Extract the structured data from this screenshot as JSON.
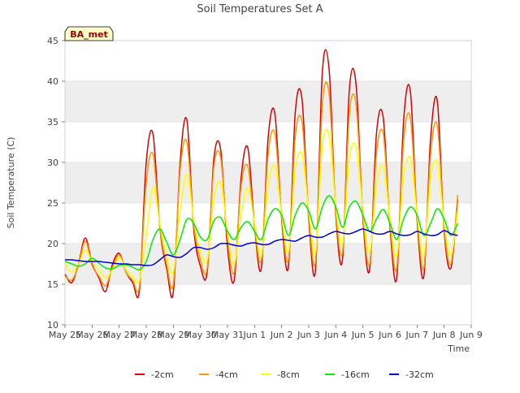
{
  "chart_data": {
    "type": "line",
    "title": "Soil Temperatures Set A",
    "xlabel": "Time",
    "ylabel": "Soil Temperature (C)",
    "site_label": "BA_met",
    "ylim": [
      10,
      45
    ],
    "yticks": [
      10,
      15,
      20,
      25,
      30,
      35,
      40,
      45
    ],
    "xlim": [
      "May 25",
      "Jun 9"
    ],
    "xticks": [
      "May 25",
      "May 26",
      "May 27",
      "May 28",
      "May 29",
      "May 30",
      "May 31",
      "Jun 1",
      "Jun 2",
      "Jun 3",
      "Jun 4",
      "Jun 5",
      "Jun 6",
      "Jun 7",
      "Jun 8",
      "Jun 9"
    ],
    "grid": true,
    "legend_position": "bottom",
    "x": [
      "May 25 00:00",
      "May 25 06:00",
      "May 25 12:00",
      "May 25 18:00",
      "May 26 00:00",
      "May 26 06:00",
      "May 26 12:00",
      "May 26 18:00",
      "May 27 00:00",
      "May 27 06:00",
      "May 27 12:00",
      "May 27 18:00",
      "May 28 00:00",
      "May 28 06:00",
      "May 28 12:00",
      "May 28 18:00",
      "May 29 00:00",
      "May 29 06:00",
      "May 29 12:00",
      "May 29 18:00",
      "May 30 00:00",
      "May 30 06:00",
      "May 30 12:00",
      "May 30 18:00",
      "May 31 00:00",
      "May 31 06:00",
      "May 31 12:00",
      "May 31 18:00",
      "Jun 1 00:00",
      "Jun 1 06:00",
      "Jun 1 12:00",
      "Jun 1 18:00",
      "Jun 2 00:00",
      "Jun 2 06:00",
      "Jun 2 12:00",
      "Jun 2 18:00",
      "Jun 3 00:00",
      "Jun 3 06:00",
      "Jun 3 12:00",
      "Jun 3 18:00",
      "Jun 4 00:00",
      "Jun 4 06:00",
      "Jun 4 12:00",
      "Jun 4 18:00",
      "Jun 5 00:00",
      "Jun 5 06:00",
      "Jun 5 12:00",
      "Jun 5 18:00",
      "Jun 6 00:00",
      "Jun 6 06:00",
      "Jun 6 12:00",
      "Jun 6 18:00",
      "Jun 7 00:00",
      "Jun 7 06:00",
      "Jun 7 12:00",
      "Jun 7 18:00",
      "Jun 8 00:00",
      "Jun 8 06:00",
      "Jun 8 12:00"
    ],
    "series": [
      {
        "name": "-2cm",
        "color": "#dd0000",
        "values": [
          16.2,
          15.2,
          17.5,
          20.7,
          17.5,
          15.8,
          14.1,
          17.4,
          18.8,
          16.5,
          15.2,
          14.3,
          30.0,
          33.5,
          22.0,
          17.0,
          14.0,
          30.0,
          35.2,
          22.0,
          17.2,
          16.5,
          30.5,
          31.5,
          19.5,
          15.5,
          28.0,
          31.8,
          22.0,
          17.0,
          33.0,
          36.0,
          23.0,
          17.2,
          36.0,
          37.8,
          23.0,
          16.8,
          41.0,
          41.5,
          23.5,
          18.2,
          39.0,
          39.5,
          23.0,
          16.8,
          33.5,
          35.5,
          22.0,
          15.8,
          35.0,
          38.8,
          23.0,
          16.0,
          33.0,
          37.5,
          21.5,
          17.0,
          25.5
        ]
      },
      {
        "name": "-4cm",
        "color": "#ff9900",
        "values": [
          16.0,
          15.5,
          17.3,
          20.3,
          17.3,
          16.0,
          14.8,
          17.0,
          18.6,
          16.5,
          15.5,
          14.8,
          27.5,
          31.0,
          22.0,
          17.5,
          15.0,
          29.0,
          32.5,
          22.5,
          18.0,
          17.0,
          29.5,
          30.5,
          20.5,
          16.5,
          27.0,
          29.5,
          22.0,
          18.0,
          31.0,
          33.5,
          23.5,
          18.0,
          33.0,
          35.0,
          23.5,
          17.8,
          37.0,
          38.5,
          24.0,
          19.0,
          36.0,
          37.0,
          23.5,
          17.5,
          31.0,
          33.5,
          22.5,
          17.0,
          32.5,
          35.5,
          23.5,
          17.0,
          31.0,
          34.5,
          22.0,
          17.5,
          26.0
        ]
      },
      {
        "name": "-8cm",
        "color": "#ffff00",
        "values": [
          17.5,
          16.5,
          17.5,
          19.2,
          17.8,
          16.8,
          15.8,
          16.8,
          18.3,
          16.8,
          16.0,
          15.5,
          21.0,
          27.0,
          22.5,
          18.5,
          16.5,
          24.0,
          28.5,
          23.0,
          19.0,
          18.0,
          25.5,
          27.5,
          21.5,
          17.5,
          23.5,
          26.8,
          22.5,
          18.5,
          27.0,
          29.5,
          23.5,
          19.0,
          29.0,
          31.0,
          24.0,
          19.0,
          32.0,
          33.3,
          24.5,
          20.0,
          30.5,
          31.8,
          24.0,
          19.0,
          27.0,
          29.5,
          23.0,
          18.5,
          28.0,
          30.5,
          23.5,
          18.5,
          28.0,
          30.0,
          22.5,
          18.5,
          24.0
        ]
      },
      {
        "name": "-16cm",
        "color": "#00ee00",
        "values": [
          17.8,
          17.5,
          17.2,
          17.5,
          18.2,
          17.6,
          17.0,
          16.9,
          17.3,
          17.4,
          17.1,
          16.8,
          17.8,
          20.5,
          21.8,
          20.2,
          18.6,
          20.5,
          23.0,
          22.5,
          20.8,
          20.5,
          22.8,
          23.2,
          21.5,
          20.5,
          22.0,
          22.7,
          21.5,
          20.5,
          23.0,
          24.3,
          23.5,
          21.0,
          23.5,
          25.0,
          24.0,
          21.8,
          24.5,
          25.9,
          24.5,
          22.0,
          24.5,
          25.2,
          23.5,
          21.5,
          23.0,
          24.2,
          22.5,
          20.5,
          23.0,
          24.5,
          23.5,
          21.0,
          22.5,
          24.3,
          23.0,
          21.0,
          22.5
        ]
      },
      {
        "name": "-32cm",
        "color": "#0000cc",
        "values": [
          18.0,
          18.0,
          17.9,
          17.8,
          17.8,
          17.8,
          17.7,
          17.6,
          17.5,
          17.5,
          17.4,
          17.4,
          17.3,
          17.4,
          18.0,
          18.6,
          18.4,
          18.3,
          18.8,
          19.5,
          19.5,
          19.3,
          19.5,
          20.0,
          20.0,
          19.8,
          19.7,
          20.0,
          20.1,
          19.9,
          19.9,
          20.3,
          20.5,
          20.4,
          20.3,
          20.7,
          21.0,
          20.8,
          20.8,
          21.2,
          21.5,
          21.3,
          21.2,
          21.5,
          21.8,
          21.5,
          21.2,
          21.2,
          21.5,
          21.2,
          21.0,
          21.1,
          21.5,
          21.2,
          21.0,
          21.1,
          21.6,
          21.2,
          21.0
        ]
      }
    ]
  }
}
